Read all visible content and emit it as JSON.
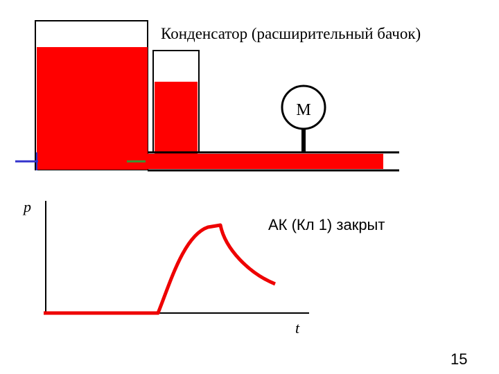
{
  "diagram": {
    "condenser_label": "Конденсатор (расширительный бачок)",
    "gauge_label": "М",
    "y_axis_label": "p",
    "x_axis_label": "t",
    "state_label": "АК (Кл 1) закрыт"
  },
  "page_number": "15"
}
